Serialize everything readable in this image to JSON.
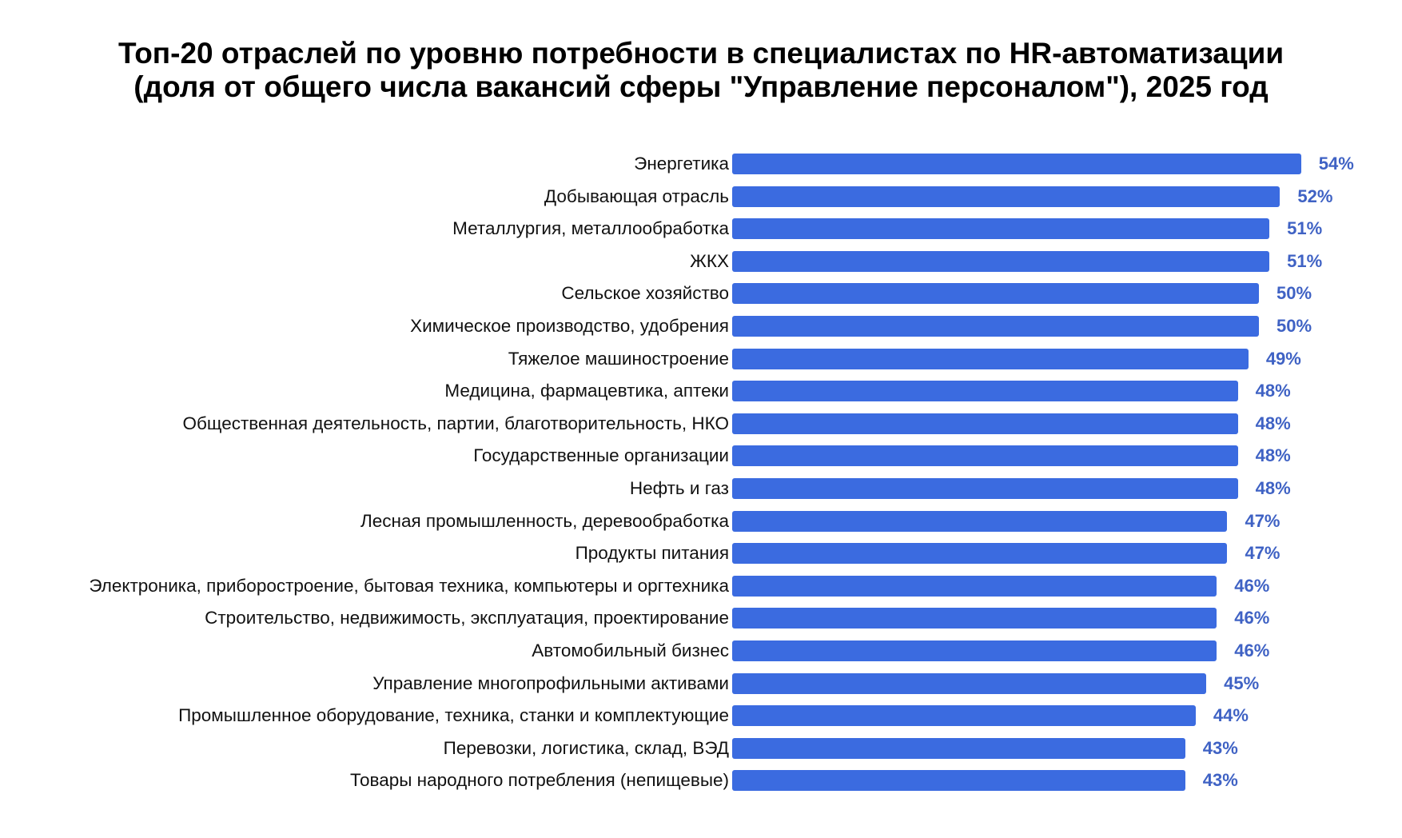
{
  "title_lines": [
    "Топ-20 отраслей по уровню потребности в специалистах по HR-автоматизации",
    "(доля от общего числа вакансий сферы \"Управление персоналом\"), 2025 год"
  ],
  "colors": {
    "bar": "#3b6be0",
    "value_label": "#3f62c4",
    "text": "#111111",
    "background": "#ffffff"
  },
  "chart_data": {
    "type": "bar",
    "orientation": "horizontal",
    "title": "Топ-20 отраслей по уровню потребности в специалистах по HR-автоматизации (доля от общего числа вакансий сферы \"Управление персоналом\"), 2025 год",
    "xlabel": "",
    "ylabel": "",
    "unit": "%",
    "grid": false,
    "legend": null,
    "categories": [
      "Энергетика",
      "Добывающая отрасль",
      "Металлургия, металлообработка",
      "ЖКХ",
      "Сельское хозяйство",
      "Химическое производство, удобрения",
      "Тяжелое машиностроение",
      "Медицина, фармацевтика, аптеки",
      "Общественная деятельность, партии, благотворительность, НКО",
      "Государственные организации",
      "Нефть и газ",
      "Лесная промышленность, деревообработка",
      "Продукты питания",
      "Электроника, приборостроение, бытовая техника, компьютеры и оргтехника",
      "Строительство, недвижимость, эксплуатация, проектирование",
      "Автомобильный бизнес",
      "Управление многопрофильными активами",
      "Промышленное оборудование, техника, станки и комплектующие",
      "Перевозки, логистика, склад, ВЭД",
      "Товары народного потребления (непищевые)"
    ],
    "values": [
      54,
      52,
      51,
      51,
      50,
      50,
      49,
      48,
      48,
      48,
      48,
      47,
      47,
      46,
      46,
      46,
      45,
      44,
      43,
      43
    ],
    "value_labels": [
      "54%",
      "52%",
      "51%",
      "51%",
      "50%",
      "50%",
      "49%",
      "48%",
      "48%",
      "48%",
      "48%",
      "47%",
      "47%",
      "46%",
      "46%",
      "46%",
      "45%",
      "44%",
      "43%",
      "43%"
    ]
  }
}
